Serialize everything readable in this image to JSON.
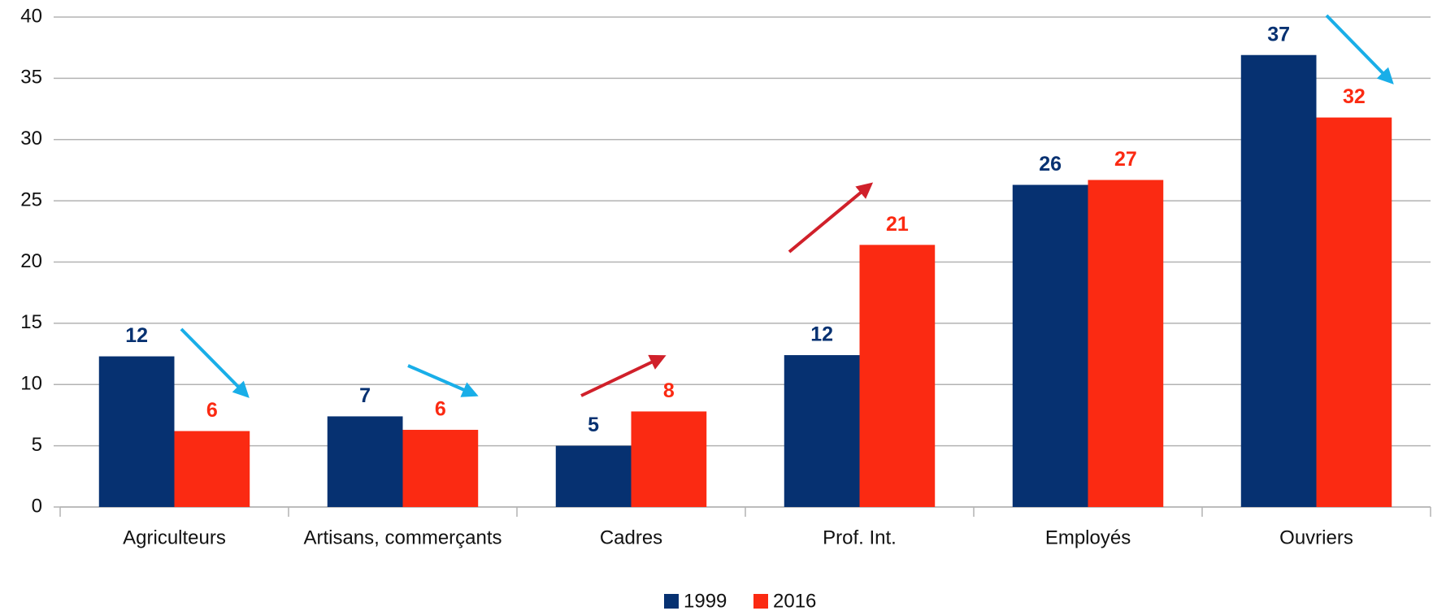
{
  "chart_data": {
    "type": "bar",
    "categories": [
      "Agriculteurs",
      "Artisans, commerçants",
      "Cadres",
      "Prof. Int.",
      "Employés",
      "Ouvriers"
    ],
    "series": [
      {
        "name": "1999",
        "color": "#063171",
        "values": [
          12.3,
          7.4,
          5.0,
          12.4,
          26.3,
          36.9
        ],
        "value_labels": [
          "12",
          "7",
          "5",
          "12",
          "26",
          "37"
        ]
      },
      {
        "name": "2016",
        "color": "#fb2a12",
        "values": [
          6.2,
          6.3,
          7.8,
          21.4,
          26.7,
          31.8
        ],
        "value_labels": [
          "6",
          "6",
          "8",
          "21",
          "27",
          "32"
        ]
      }
    ],
    "ylim": [
      0,
      40
    ],
    "yticks": [
      0,
      5,
      10,
      15,
      20,
      25,
      30,
      35,
      40
    ],
    "grid": true,
    "legend": "bottom"
  }
}
